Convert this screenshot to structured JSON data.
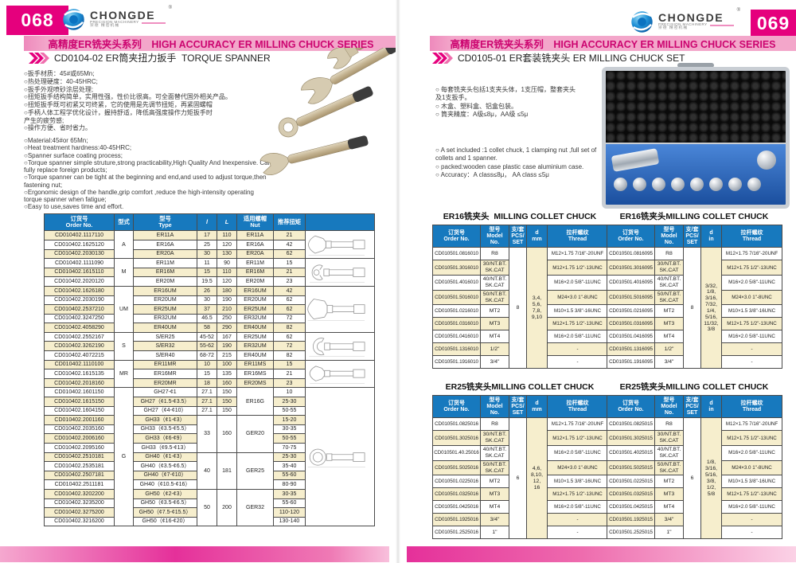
{
  "series_banner": "高精度ER铣夹头系列　HIGH ACCURACY ER MILLING CHUCK SERIES",
  "logo": {
    "brand": "CHONGDE",
    "sub": "PRECISION MACHINERY",
    "cn": "崇德 精密机械",
    "reg": "®"
  },
  "colors": {
    "accent_magenta": "#e5007d",
    "banner_pink": "#f3a6ca",
    "banner_text": "#cc0570",
    "table_header_blue": "#1779be",
    "row_cream": "#f6eecd"
  },
  "page_left": {
    "page_number": "068",
    "section_title": "CD0104-02 ER筒夹扭力扳手  TORQUE SPANNER",
    "bullets_cn": [
      "○扳手材质：45#或65Mn;",
      "○热处理硬度：40-45HRC;",
      "○扳手外观喷砂涂层处理;",
      "○扭矩扳手结构简单，实用性强，性价比很高。可全面替代国外相关产品。",
      "○扭矩扳手既可初紧又可终紧，它的使用是先调节扭矩，再紧固螺帽",
      "○手柄人体工程学优化设计，握持舒适，降低高强度操作力矩扳手时\n产生的疲劳感;",
      "○操作方便、省时省力。"
    ],
    "bullets_en": [
      "○Material:45#or 65Mn;",
      "○Heat treatment hardness:40-45HRC;",
      "○Spanner surface coating process;",
      "○Torque spanner simple struture,strong practicability,High Quality And Inexpensive. Can fully replace foreign products;",
      "○Torque spanner can be tight at the beginning and end,and used to adjust torque,then fastening nut;",
      "○Ergonomic design of the handle,grip comfort ,reduce the high-intensity operating torque spanner when fatigue;",
      "○Easy to use,saves time and effort."
    ],
    "table": {
      "columns": [
        "订货号\nOrder No.",
        "型式",
        "型号\nType",
        "l",
        "L",
        "适用螺帽\nNut",
        "推荐扭矩",
        ""
      ],
      "rows": [
        [
          "CD010402.1117110",
          {
            "t": "A",
            "rs": 3
          },
          "ER11A",
          "17",
          "110",
          "ER11A",
          "21",
          {
            "icon": "drawing-open-end-a",
            "rs": 3
          }
        ],
        [
          "CD010402.1625120",
          null,
          "ER16A",
          "25",
          "120",
          "ER16A",
          "42",
          null
        ],
        [
          "CD010402.2030130",
          null,
          "ER20A",
          "30",
          "130",
          "ER20A",
          "62",
          null
        ],
        [
          "CD010402.1111090",
          {
            "t": "M",
            "rs": 3
          },
          "ER11M",
          "11",
          "90",
          "ER11M",
          "15",
          {
            "icon": "drawing-hook-m",
            "rs": 3
          }
        ],
        [
          "CD010402.1615110",
          null,
          "ER16M",
          "15",
          "110",
          "ER16M",
          "21",
          null
        ],
        [
          "CD010402.2020120",
          null,
          "ER20M",
          "19.5",
          "120",
          "ER20M",
          "23",
          null
        ],
        [
          "CD010402.1626180",
          {
            "t": "UM",
            "rs": 5
          },
          "ER16UM",
          "26",
          "180",
          "ER16UM",
          "42",
          {
            "icon": "drawing-open-end-um",
            "rs": 5
          }
        ],
        [
          "CD010402.2030190",
          null,
          "ER20UM",
          "30",
          "190",
          "ER20UM",
          "62",
          null
        ],
        [
          "CD010402.2537210",
          null,
          "ER25UM",
          "37",
          "210",
          "ER25UM",
          "62",
          null
        ],
        [
          "CD010402.3247250",
          null,
          "ER32UM",
          "46.5",
          "250",
          "ER32UM",
          "72",
          null
        ],
        [
          "CD010402.4058290",
          null,
          "ER40UM",
          "58",
          "290",
          "ER40UM",
          "82",
          null
        ],
        [
          "CD010402.2552167",
          {
            "t": "S",
            "rs": 3
          },
          "S/ER25",
          "45-52",
          "167",
          "ER25UM",
          "62",
          {
            "icon": "drawing-c-hook-s",
            "rs": 3
          }
        ],
        [
          "CD010402.3262190",
          null,
          "S/ER32",
          "55-62",
          "190",
          "ER32UM",
          "72",
          null
        ],
        [
          "CD010402.4072215",
          null,
          "S/ER40",
          "68-72",
          "215",
          "ER40UM",
          "82",
          null
        ],
        [
          "CD010402.1110100",
          {
            "t": "MR",
            "rs": 3
          },
          "ER11MR",
          "10",
          "100",
          "ER11MS",
          "15",
          {
            "icon": "drawing-open-end-mr",
            "rs": 3
          }
        ],
        [
          "CD010402.1615135",
          null,
          "ER16MR",
          "15",
          "135",
          "ER16MS",
          "21",
          null
        ],
        [
          "CD010402.2018160",
          null,
          "ER20MR",
          "18",
          "160",
          "ER20MS",
          "23",
          null
        ],
        [
          "CD010402.1601150",
          {
            "t": "G",
            "rs": 15
          },
          "GH27-¢1",
          "27.1",
          "150",
          {
            "t": "ER16G",
            "rs": 3
          },
          "10",
          {
            "icon": "drawing-ring-g",
            "rs": 15
          }
        ],
        [
          "CD010402.1615150",
          null,
          "GH27（¢1.5-¢3.5）",
          "27.1",
          "150",
          null,
          "25-30",
          null
        ],
        [
          "CD010402.1604150",
          null,
          "GH27（¢4-¢10）",
          "27.1",
          "150",
          null,
          "50-55",
          null
        ],
        [
          "CD010402.2001160",
          null,
          "GH33（¢1-¢3）",
          {
            "t": "33",
            "rs": 4
          },
          {
            "t": "160",
            "rs": 4
          },
          {
            "t": "GER20",
            "rs": 4
          },
          "15-20",
          null
        ],
        [
          "CD010402.2035160",
          null,
          "GH33（¢3.5-¢5.5）",
          null,
          null,
          null,
          "30-35",
          null
        ],
        [
          "CD010402.2006160",
          null,
          "GH33（¢6-¢9）",
          null,
          null,
          null,
          "50-55",
          null
        ],
        [
          "CD010402.2095160",
          null,
          "GH33（¢9.5-¢13）",
          null,
          null,
          null,
          "70-75",
          null
        ],
        [
          "CD010402.2510181",
          null,
          "GH40（¢1-¢3）",
          {
            "t": "40",
            "rs": 4
          },
          {
            "t": "181",
            "rs": 4
          },
          {
            "t": "GER25",
            "rs": 4
          },
          "25-30",
          null
        ],
        [
          "CD010402.2535181",
          null,
          "GH40（¢3.5-¢6.5）",
          null,
          null,
          null,
          "35-40",
          null
        ],
        [
          "CD010402.2507181",
          null,
          "GH40（¢7-¢10）",
          null,
          null,
          null,
          "55-60",
          null
        ],
        [
          "CD010402.2511181",
          null,
          "GH40（¢10.5-¢16）",
          null,
          null,
          null,
          "80-90",
          null
        ],
        [
          "CD010402.3202200",
          null,
          "GH50（¢2-¢3）",
          {
            "t": "50",
            "rs": 4
          },
          {
            "t": "200",
            "rs": 4
          },
          {
            "t": "GER32",
            "rs": 4
          },
          "30-35",
          null
        ],
        [
          "CD010402.3235200",
          null,
          "GH50（¢3.5-¢6.5）",
          null,
          null,
          null,
          "55-60",
          null
        ],
        [
          "CD010402.3275200",
          null,
          "GH50（¢7.5-¢15.5）",
          null,
          null,
          null,
          "110-120",
          null
        ],
        [
          "CD010402.3216200",
          null,
          "GH50（¢16-¢20）",
          null,
          null,
          null,
          "130-140",
          null
        ]
      ]
    }
  },
  "page_right": {
    "page_number": "069",
    "section_title": "CD0105-01 ER套装铣夹头 ER MILLING CHUCK SET",
    "bullets_cn": [
      "○ 每套铣夹头包括1支夹头体，1支压帽，整套夹头\n及1支扳手。",
      "○ 木盒、塑料盒、铝盒包装。",
      "○ 筒夹精度：A级≤8μ，AA级 ≤5μ"
    ],
    "bullets_en": [
      "○ A set included :1 collet chuck, 1 clamping nut ,full set of\ncollets and 1 spanner.",
      "○ packed:wooden case  plastic case aluminium case.",
      "○ Accuracy：A class≤8μ， AA class ≤5μ"
    ],
    "tables": {
      "er16_mm": {
        "title": "ER16铣夹头  MILLING COLLET CHUCK",
        "columns": [
          "订货号\nOrder No.",
          "型号\nModel\nNo.",
          "支/套\nPCS/\nSET",
          "d\nmm",
          "拉杆螺纹\nThread"
        ],
        "rows": [
          [
            "CD010501.0816010",
            "R8",
            {
              "t": "8",
              "rs": 9
            },
            {
              "t": "3,4,\n5,6,\n7,8,\n9,10",
              "rs": 9,
              "cls": "cream"
            },
            "M12×1.75 7/16\"-20UNF"
          ],
          [
            "CD010501.3016010",
            "30/NT.BT.\nSK.CAT",
            null,
            null,
            "M12×1.75 1/2\"-13UNC"
          ],
          [
            "CD010501.4016010",
            "40/NT.BT.\nSK.CAT",
            null,
            null,
            "M16×2.0 5/8\"-11UNC"
          ],
          [
            "CD010501.5016010",
            "50/NT.BT.\nSK.CAT",
            null,
            null,
            "M24×3.0 1\"-8UNC"
          ],
          [
            "CD010501.0216010",
            "MT2",
            null,
            null,
            "M10×1.5 3/8\"-16UNC"
          ],
          [
            "CD010501.0316010",
            "MT3",
            null,
            null,
            "M12×1.75 1/2\"-13UNC"
          ],
          [
            "CD010501.0416010",
            "MT4",
            null,
            null,
            "M16×2.0 5/8\"-11UNC"
          ],
          [
            "CD010501.1316010",
            "1/2\"",
            null,
            null,
            "-"
          ],
          [
            "CD010501.1916010",
            "3/4\"",
            null,
            null,
            "-"
          ]
        ]
      },
      "er16_in": {
        "title": "ER16铣夹头MILLING COLLET CHUCK",
        "columns": [
          "订货号\nOrder No.",
          "型号\nModel\nNo.",
          "支/套\nPCS/\nSET",
          "d\nin",
          "拉杆螺纹\nThread"
        ],
        "rows": [
          [
            "CD010501.0816095",
            "R8",
            {
              "t": "8",
              "rs": 9
            },
            {
              "t": "3/32,\n1/8,\n3/16,\n7/32,\n1/4,\n5/16,\n11/32,\n3/8",
              "rs": 9,
              "cls": "cream"
            },
            "M12×1.75 7/16\"-20UNF"
          ],
          [
            "CD010501.3016095",
            "30/NT.BT.\nSK.CAT",
            null,
            null,
            "M12×1.75 1/2\"-13UNC"
          ],
          [
            "CD010501.4016095",
            "40/NT.BT.\nSK.CAT",
            null,
            null,
            "M16×2.0 5/8\"-11UNC"
          ],
          [
            "CD010501.5016095",
            "50/NT.BT.\nSK.CAT",
            null,
            null,
            "M24×3.0 1\"-8UNC"
          ],
          [
            "CD010501.0216095",
            "MT2",
            null,
            null,
            "M10×1.5 3/8\"-16UNC"
          ],
          [
            "CD010501.0316095",
            "MT3",
            null,
            null,
            "M12×1.75 1/2\"-13UNC"
          ],
          [
            "CD010501.0416095",
            "MT4",
            null,
            null,
            "M16×2.0 5/8\"-11UNC"
          ],
          [
            "CD010501.1316095",
            "1/2\"",
            null,
            null,
            "-"
          ],
          [
            "CD010501.1916095",
            "3/4\"",
            null,
            null,
            "-"
          ]
        ]
      },
      "er25_mm": {
        "title": "ER25铣夹头MILLING COLLET CHUCK",
        "columns": [
          "订货号\nOrder No.",
          "型号\nModel\nNo.",
          "支/套\nPCS/\nSET",
          "d\nmm",
          "拉杆螺纹\nThread"
        ],
        "rows": [
          [
            "CD010501.0825016",
            "R8",
            {
              "t": "6",
              "rs": 9
            },
            {
              "t": "4,6,\n8,10,\n12,\n16",
              "rs": 9,
              "cls": "cream"
            },
            "M12×1.75 7/16\"-20UNF"
          ],
          [
            "CD010501.3025016",
            "30/NT.BT.\nSK.CAT",
            null,
            null,
            "M12×1.75 1/2\"-13UNC"
          ],
          [
            "CD010501.40.25016",
            "40/NT.BT.\nSK.CAT",
            null,
            null,
            "M16×2.0 5/8\"-11UNC"
          ],
          [
            "CD010501.5025016",
            "50/NT.BT.\nSK.CAT",
            null,
            null,
            "M24×3.0 1\"-8UNC"
          ],
          [
            "CD010501.0225016",
            "MT2",
            null,
            null,
            "M10×1.5 3/8\"-16UNC"
          ],
          [
            "CD010501.0325016",
            "MT3",
            null,
            null,
            "M12×1.75 1/2\"-13UNC"
          ],
          [
            "CD010501.0425016",
            "MT4",
            null,
            null,
            "M16×2.0 5/8\"-11UNC"
          ],
          [
            "CD010501.1925016",
            "3/4\"",
            null,
            null,
            "-"
          ],
          [
            "CD010501.2525016",
            "1\"",
            null,
            null,
            "-"
          ]
        ]
      },
      "er25_in": {
        "title": "ER25铣夹头MILLING COLLET CHUCK",
        "columns": [
          "订货号\nOrder No.",
          "型号\nModel\nNo.",
          "支/套\nPCS/\nSET",
          "d\nin",
          "拉杆螺纹\nThread"
        ],
        "rows": [
          [
            "CD010501.0825015",
            "R8",
            {
              "t": "6",
              "rs": 9
            },
            {
              "t": "1/8,\n3/16,\n5/16,\n3/8,\n1/2,\n5/8",
              "rs": 9,
              "cls": "cream"
            },
            "M12×1.75 7/16\"-20UNF"
          ],
          [
            "CD010501.3025015",
            "30/NT.BT.\nSK.CAT",
            null,
            null,
            "M12×1.75 1/2\"-13UNC"
          ],
          [
            "CD010501.4025015",
            "40/NT.BT.\nSK.CAT",
            null,
            null,
            "M16×2.0 5/8\"-11UNC"
          ],
          [
            "CD010501.5025015",
            "50/NT.BT.\nSK.CAT",
            null,
            null,
            "M24×3.0 1\"-8UNC"
          ],
          [
            "CD010501.0225015",
            "MT2",
            null,
            null,
            "M10×1.5 3/8\"-16UNC"
          ],
          [
            "CD010501.0325015",
            "MT3",
            null,
            null,
            "M12×1.75 1/2\"-13UNC"
          ],
          [
            "CD010501.0425015",
            "MT4",
            null,
            null,
            "M16×2.0 5/8\"-11UNC"
          ],
          [
            "CD010501.1925015",
            "3/4\"",
            null,
            null,
            "-"
          ],
          [
            "CD010501.2525015",
            "1\"",
            null,
            null,
            "-"
          ]
        ]
      }
    }
  }
}
